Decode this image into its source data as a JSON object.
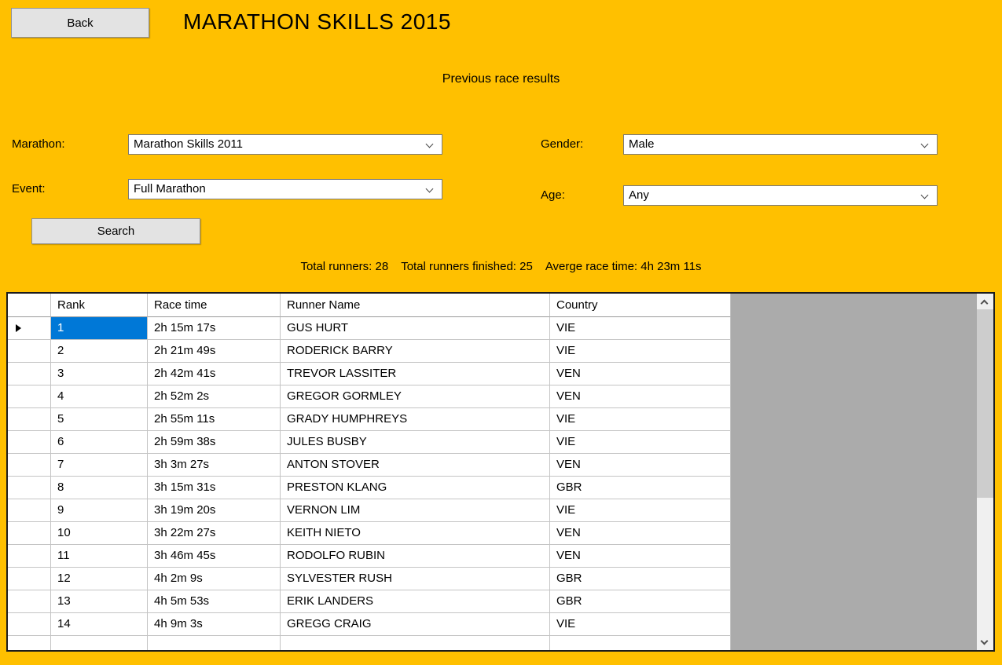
{
  "header": {
    "back_label": "Back",
    "title": "MARATHON SKILLS 2015",
    "subtitle": "Previous race results"
  },
  "filters": {
    "marathon": {
      "label": "Marathon:",
      "value": "Marathon Skills 2011"
    },
    "event": {
      "label": "Event:",
      "value": "Full Marathon"
    },
    "gender": {
      "label": "Gender:",
      "value": "Male"
    },
    "age": {
      "label": "Age:",
      "value": "Any"
    }
  },
  "search_label": "Search",
  "stats": {
    "runners": {
      "label": "Total runners:",
      "value": "28"
    },
    "finished": {
      "label": "Total runners finished:",
      "value": "25"
    },
    "average": {
      "label": "Averge race time:",
      "value": "4h 23m 11s"
    }
  },
  "table": {
    "columns": [
      "Rank",
      "Race time",
      "Runner Name",
      "Country"
    ],
    "selected_row_index": 0,
    "selected_column": "Rank",
    "rows": [
      {
        "rank": "1",
        "race_time": "2h 15m 17s",
        "runner_name": "GUS HURT",
        "country": "VIE"
      },
      {
        "rank": "2",
        "race_time": "2h 21m 49s",
        "runner_name": "RODERICK BARRY",
        "country": "VIE"
      },
      {
        "rank": "3",
        "race_time": "2h 42m 41s",
        "runner_name": "TREVOR LASSITER",
        "country": "VEN"
      },
      {
        "rank": "4",
        "race_time": "2h 52m 2s",
        "runner_name": "GREGOR GORMLEY",
        "country": "VEN"
      },
      {
        "rank": "5",
        "race_time": "2h 55m 11s",
        "runner_name": "GRADY HUMPHREYS",
        "country": "VIE"
      },
      {
        "rank": "6",
        "race_time": "2h 59m 38s",
        "runner_name": "JULES BUSBY",
        "country": "VIE"
      },
      {
        "rank": "7",
        "race_time": "3h 3m 27s",
        "runner_name": "ANTON STOVER",
        "country": "VEN"
      },
      {
        "rank": "8",
        "race_time": "3h 15m 31s",
        "runner_name": "PRESTON KLANG",
        "country": "GBR"
      },
      {
        "rank": "9",
        "race_time": "3h 19m 20s",
        "runner_name": "VERNON LIM",
        "country": "VIE"
      },
      {
        "rank": "10",
        "race_time": "3h 22m 27s",
        "runner_name": "KEITH NIETO",
        "country": "VEN"
      },
      {
        "rank": "11",
        "race_time": "3h 46m 45s",
        "runner_name": "RODOLFO RUBIN",
        "country": "VEN"
      },
      {
        "rank": "12",
        "race_time": "4h 2m 9s",
        "runner_name": "SYLVESTER RUSH",
        "country": "GBR"
      },
      {
        "rank": "13",
        "race_time": "4h 5m 53s",
        "runner_name": "ERIK LANDERS",
        "country": "GBR"
      },
      {
        "rank": "14",
        "race_time": "4h 9m 3s",
        "runner_name": "GREGG CRAIG",
        "country": "VIE"
      }
    ]
  },
  "colors": {
    "background": "#FFC000",
    "selection": "#0078D7",
    "grid_filler": "#ABABAB",
    "gridline": "#C4C4C4"
  },
  "icons": {
    "combo_dropdown": "chevron-down",
    "scroll_up": "chevron-up",
    "scroll_down": "chevron-down",
    "current_row": "right-pointer"
  }
}
